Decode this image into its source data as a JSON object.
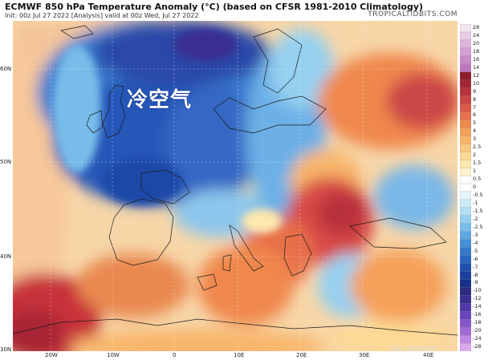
{
  "header": {
    "title": "ECMWF 850 hPa Temperature Anomaly (°C) (based on CFSR 1981-2010 Climatology)",
    "subtitle": "Init: 00z Jul 27 2022   [Analysis]   valid at 00z Wed, Jul 27 2022",
    "brand": "TROPICALTIDBITS.COM"
  },
  "annotation": "冷空气",
  "watermark": "头条 @地球科学",
  "latitude_labels": [
    "60N",
    "50N",
    "40N",
    "30N"
  ],
  "longitude_labels": [
    "20W",
    "10W",
    "0",
    "10E",
    "20E",
    "30E",
    "40E"
  ],
  "colorbar": {
    "labels": [
      "28",
      "24",
      "20",
      "18",
      "16",
      "14",
      "12",
      "10",
      "9",
      "8",
      "7",
      "6",
      "5",
      "4",
      "3",
      "2.5",
      "2",
      "1.5",
      "1",
      "0.5",
      "0",
      "-0.5",
      "-1",
      "-1.5",
      "-2",
      "-2.5",
      "-3",
      "-4",
      "-5",
      "-6",
      "-7",
      "-8",
      "-9",
      "-10",
      "-12",
      "-14",
      "-16",
      "-18",
      "-20",
      "-24",
      "-28"
    ],
    "colors": [
      "#f2e6f0",
      "#e8cde6",
      "#ddb5dc",
      "#d49fd2",
      "#c98ac8",
      "#be75bf",
      "#8c1c2c",
      "#a22734",
      "#b8323c",
      "#cc4646",
      "#dc5a48",
      "#e8704a",
      "#f0884e",
      "#f5a05a",
      "#f8b56a",
      "#fac87e",
      "#fcd994",
      "#fde8ad",
      "#fef3cb",
      "#ffffff",
      "#ffffff",
      "#e6f5fc",
      "#cdebf8",
      "#b3dff5",
      "#96d0f0",
      "#78bdea",
      "#5ea7e2",
      "#4690d8",
      "#3578cc",
      "#2863c0",
      "#1e50b0",
      "#1a3f9e",
      "#17318a",
      "#2a2a80",
      "#3a2f92",
      "#5038a8",
      "#6a44bc",
      "#8856cc",
      "#a46ad8",
      "#c286e4",
      "#dba8ee"
    ]
  }
}
